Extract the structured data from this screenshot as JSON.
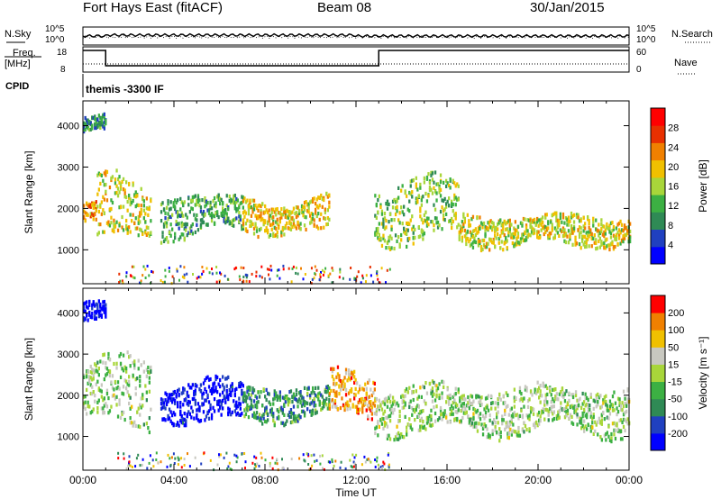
{
  "header": {
    "station": "Fort Hays East (fitACF)",
    "beam": "Beam 08",
    "date": "30/Jan/2015"
  },
  "top_panels": {
    "nsky_label": "N.Sky",
    "nsearch_label": "N.Search",
    "freq_label": "Freq.",
    "freq_unit": "[MHz]",
    "nave_label": "Nave",
    "cpid_label": "CPID",
    "cpid_value": "themis -3300 IF",
    "noise_ticks": [
      "10^5",
      "10^0"
    ],
    "freq_ticks": [
      "18",
      "8"
    ],
    "nave_ticks": [
      "60",
      "0"
    ]
  },
  "chart_data": [
    {
      "type": "heatmap",
      "panel": "power",
      "ylabel": "Slant Range [km]",
      "xlabel": "",
      "x_range_hours": [
        0,
        24
      ],
      "ylim": [
        180,
        4600
      ],
      "yticks": [
        "1000",
        "2000",
        "3000",
        "4000"
      ],
      "colorbar": {
        "label": "Power [dB]",
        "ticks": [
          "28",
          "24",
          "20",
          "16",
          "12",
          "8",
          "4"
        ],
        "colors": [
          "#0000ff",
          "#2040c0",
          "#2f8a55",
          "#3cb043",
          "#a8d63a",
          "#f0c000",
          "#f08000",
          "#e83000",
          "#ff0000"
        ]
      },
      "bands": [
        {
          "x0": 0.0,
          "x1": 0.6,
          "y0": 1550,
          "y1": 2300,
          "level": 0.7
        },
        {
          "x0": 0.6,
          "x1": 3.0,
          "y0": 1250,
          "y1": 2800,
          "level": 0.55
        },
        {
          "x0": 3.4,
          "x1": 7.0,
          "y0": 1350,
          "y1": 2400,
          "level": 0.35
        },
        {
          "x0": 7.0,
          "x1": 10.8,
          "y0": 1400,
          "y1": 2300,
          "level": 0.6
        },
        {
          "x0": 12.8,
          "x1": 16.5,
          "y0": 1200,
          "y1": 2800,
          "level": 0.45
        },
        {
          "x0": 16.5,
          "x1": 24.0,
          "y0": 1100,
          "y1": 1900,
          "level": 0.55
        },
        {
          "x0": 0.0,
          "x1": 1.0,
          "y0": 3800,
          "y1": 4300,
          "level": 0.3
        }
      ]
    },
    {
      "type": "heatmap",
      "panel": "velocity",
      "ylabel": "Slant Range [km]",
      "xlabel": "Time UT",
      "x_range_hours": [
        0,
        24
      ],
      "ylim": [
        180,
        4600
      ],
      "yticks": [
        "1000",
        "2000",
        "3000",
        "4000"
      ],
      "xticks": [
        "00:00",
        "04:00",
        "08:00",
        "12:00",
        "16:00",
        "20:00",
        "00:00"
      ],
      "colorbar": {
        "label": "Velocity [m s⁻¹]",
        "ticks": [
          "200",
          "100",
          "50",
          "15",
          "-15",
          "-50",
          "-100",
          "-200"
        ],
        "colors": [
          "#0000ff",
          "#2040c0",
          "#2f8a55",
          "#3cb043",
          "#a8d63a",
          "#c8c8c0",
          "#f0c000",
          "#f08000",
          "#ff0000"
        ]
      },
      "bands": [
        {
          "x0": 0.0,
          "x1": 3.0,
          "y0": 1250,
          "y1": 3000,
          "level": 0.5
        },
        {
          "x0": 3.4,
          "x1": 7.0,
          "y0": 1350,
          "y1": 2400,
          "level": 0.05
        },
        {
          "x0": 7.0,
          "x1": 10.8,
          "y0": 1400,
          "y1": 2300,
          "level": 0.3
        },
        {
          "x0": 10.8,
          "x1": 12.8,
          "y0": 1500,
          "y1": 2600,
          "level": 0.75
        },
        {
          "x0": 12.8,
          "x1": 24.0,
          "y0": 1100,
          "y1": 2300,
          "level": 0.5
        },
        {
          "x0": 0.0,
          "x1": 1.0,
          "y0": 3800,
          "y1": 4300,
          "level": 0.0
        }
      ]
    }
  ]
}
